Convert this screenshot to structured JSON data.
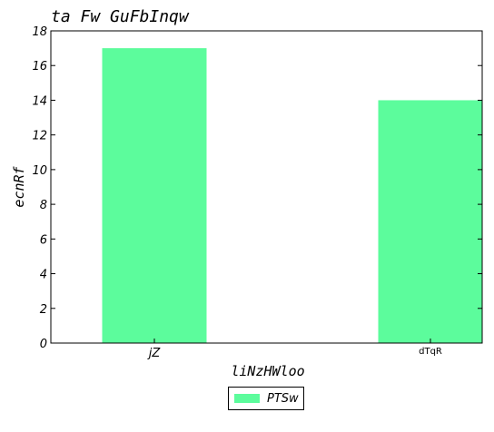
{
  "chart_data": {
    "type": "bar",
    "title": "ta Fw GuFbInqw",
    "xlabel": "liNzHWloo",
    "ylabel": "ecnRf",
    "categories": [
      "jZ",
      "dTqR"
    ],
    "series": [
      {
        "name": "PTSw",
        "values": [
          17,
          14
        ],
        "color": "#5cfc9c"
      }
    ],
    "ylim": [
      0,
      18
    ],
    "yticks": [
      0,
      2,
      4,
      6,
      8,
      10,
      12,
      14,
      16,
      18
    ],
    "grid": false,
    "legend_position": "bottom-center"
  }
}
